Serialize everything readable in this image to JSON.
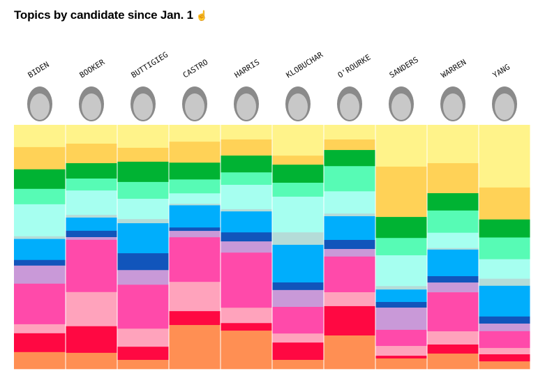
{
  "title": "Topics by candidate since Jan. 1",
  "title_icon": "pointer-hand-icon",
  "chart_data": {
    "type": "bar",
    "stacked": true,
    "normalized": true,
    "title": "Topics by candidate since Jan. 1",
    "xlabel": "",
    "ylabel": "",
    "ylim": [
      0,
      100
    ],
    "grid": false,
    "categories": [
      "BIDEN",
      "BOOKER",
      "BUTTIGIEG",
      "CASTRO",
      "HARRIS",
      "KLOBUCHAR",
      "O'ROURKE",
      "SANDERS",
      "WARREN",
      "YANG"
    ],
    "series": [
      {
        "color": "#fff38a",
        "values": [
          9.1,
          7.7,
          9.4,
          6.9,
          6.0,
          12.6,
          6.0,
          17.1,
          15.7,
          25.7
        ]
      },
      {
        "color": "#ffd257",
        "values": [
          9.1,
          8.0,
          5.7,
          8.6,
          6.6,
          3.7,
          4.3,
          20.6,
          12.3,
          13.1
        ]
      },
      {
        "color": "#00b333",
        "values": [
          8.0,
          6.3,
          8.3,
          6.9,
          6.9,
          7.4,
          6.6,
          8.6,
          7.1,
          7.4
        ]
      },
      {
        "color": "#57fbb5",
        "values": [
          6.3,
          4.9,
          6.9,
          5.7,
          5.1,
          5.7,
          10.3,
          7.1,
          9.1,
          8.9
        ]
      },
      {
        "color": "#a6fff0",
        "values": [
          13.1,
          10.0,
          8.3,
          4.3,
          10.0,
          14.6,
          9.1,
          12.6,
          6.3,
          8.0
        ]
      },
      {
        "color": "#b4dcd8",
        "values": [
          1.1,
          1.1,
          1.7,
          0.6,
          0.9,
          5.1,
          1.1,
          1.4,
          0.6,
          2.9
        ]
      },
      {
        "color": "#00aefc",
        "values": [
          8.6,
          5.4,
          12.3,
          9.1,
          8.6,
          15.4,
          9.7,
          5.1,
          10.9,
          12.6
        ]
      },
      {
        "color": "#1155bb",
        "values": [
          2.3,
          2.6,
          6.9,
          1.4,
          3.7,
          3.1,
          3.7,
          2.3,
          2.6,
          2.9
        ]
      },
      {
        "color": "#c999d8",
        "values": [
          7.4,
          1.1,
          6.0,
          2.6,
          4.6,
          6.9,
          3.1,
          9.1,
          4.0,
          3.1
        ]
      },
      {
        "color": "#ff4aaa",
        "values": [
          16.6,
          21.4,
          18.0,
          18.3,
          22.6,
          10.9,
          14.6,
          6.6,
          16.0,
          6.9
        ]
      },
      {
        "color": "#ffa3bc",
        "values": [
          3.7,
          14.0,
          7.4,
          12.0,
          6.3,
          3.7,
          5.7,
          4.0,
          5.4,
          2.6
        ]
      },
      {
        "color": "#ff0842",
        "values": [
          7.7,
          10.9,
          5.4,
          5.7,
          3.1,
          7.1,
          12.0,
          1.1,
          3.7,
          2.9
        ]
      },
      {
        "color": "#ff8f53",
        "values": [
          6.9,
          6.6,
          3.7,
          18.0,
          15.7,
          3.7,
          13.7,
          4.3,
          6.3,
          3.1
        ]
      }
    ]
  }
}
